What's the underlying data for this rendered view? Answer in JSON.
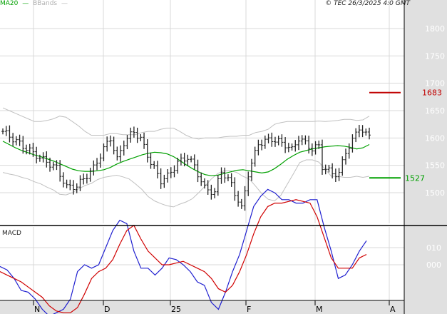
{
  "legend": {
    "ma_label": "MA20",
    "bb_label": "BBands"
  },
  "source_label": "© TEC 26/3/2025 4:0 GMT",
  "macd_label": "MACD",
  "colors": {
    "price": "#222222",
    "ma20": "#00a000",
    "bbands": "#c0c0c0",
    "macd_line": "#2020d0",
    "signal_line": "#d00000",
    "resistance": "#c00000",
    "support": "#00a000",
    "grid": "#d8d8d8",
    "axis_band": "#e0e0e0"
  },
  "chart_data": [
    {
      "type": "ohlc",
      "ylim": [
        1440,
        1830
      ],
      "y_ticks": [
        1500,
        1550,
        1600,
        1650,
        1700,
        1750,
        1800
      ],
      "y_tick_labels": [
        "1500",
        "1550",
        "1600",
        "1650",
        "1700",
        "1750",
        "1800"
      ],
      "x_month_labels": [
        "N",
        "D",
        "25",
        "F",
        "M",
        "A"
      ],
      "num_sessions": 110,
      "levels": [
        {
          "name": "resistance",
          "value": 1683,
          "label": "1683"
        },
        {
          "name": "support",
          "value": 1527,
          "label": "1527"
        }
      ],
      "series": [
        {
          "name": "price_close",
          "key_points": [
            [
              0,
              1612
            ],
            [
              6,
              1585
            ],
            [
              12,
              1560
            ],
            [
              16,
              1545
            ],
            [
              19,
              1510
            ],
            [
              22,
              1512
            ],
            [
              27,
              1545
            ],
            [
              30,
              1580
            ],
            [
              32,
              1600
            ],
            [
              34,
              1560
            ],
            [
              36,
              1592
            ],
            [
              39,
              1612
            ],
            [
              41,
              1598
            ],
            [
              44,
              1555
            ],
            [
              47,
              1522
            ],
            [
              49,
              1530
            ],
            [
              52,
              1555
            ],
            [
              55,
              1565
            ],
            [
              57,
              1548
            ],
            [
              60,
              1508
            ],
            [
              63,
              1500
            ],
            [
              65,
              1540
            ],
            [
              68,
              1515
            ],
            [
              71,
              1470
            ],
            [
              73,
              1535
            ],
            [
              76,
              1590
            ],
            [
              80,
              1598
            ],
            [
              84,
              1588
            ],
            [
              86,
              1578
            ],
            [
              88,
              1600
            ],
            [
              92,
              1580
            ],
            [
              94,
              1585
            ],
            [
              95,
              1548
            ],
            [
              98,
              1535
            ],
            [
              100,
              1535
            ],
            [
              102,
              1575
            ],
            [
              104,
              1595
            ],
            [
              106,
              1620
            ],
            [
              108,
              1605
            ]
          ]
        },
        {
          "name": "MA20",
          "values": [
            1594,
            1588,
            1582,
            1577,
            1573,
            1569,
            1566,
            1562,
            1558,
            1553,
            1548,
            1543,
            1540,
            1539,
            1539,
            1540,
            1542,
            1546,
            1552,
            1557,
            1561,
            1565,
            1569,
            1572,
            1574,
            1573,
            1571,
            1566,
            1559,
            1551,
            1544,
            1538,
            1533,
            1531,
            1532,
            1535,
            1538,
            1541,
            1542,
            1540,
            1538,
            1536,
            1538,
            1544,
            1552,
            1561,
            1568,
            1574,
            1577,
            1580,
            1582,
            1584,
            1585,
            1586,
            1585,
            1583,
            1580,
            1582,
            1588
          ]
        },
        {
          "name": "BB_upper",
          "values": [
            1655,
            1650,
            1645,
            1640,
            1635,
            1630,
            1630,
            1632,
            1635,
            1640,
            1638,
            1630,
            1622,
            1612,
            1605,
            1605,
            1605,
            1608,
            1608,
            1606,
            1606,
            1606,
            1610,
            1612,
            1612,
            1616,
            1618,
            1618,
            1612,
            1605,
            1600,
            1598,
            1600,
            1600,
            1600,
            1602,
            1603,
            1603,
            1605,
            1605,
            1610,
            1612,
            1616,
            1625,
            1628,
            1630,
            1630,
            1630,
            1630,
            1630,
            1631,
            1630,
            1631,
            1632,
            1634,
            1634,
            1632,
            1633,
            1640
          ]
        },
        {
          "name": "BB_lower",
          "values": [
            1537,
            1534,
            1532,
            1528,
            1525,
            1520,
            1516,
            1510,
            1505,
            1497,
            1496,
            1500,
            1507,
            1513,
            1517,
            1524,
            1528,
            1530,
            1532,
            1529,
            1525,
            1516,
            1506,
            1493,
            1485,
            1480,
            1476,
            1474,
            1479,
            1483,
            1489,
            1500,
            1512,
            1525,
            1535,
            1540,
            1540,
            1537,
            1530,
            1525,
            1512,
            1498,
            1488,
            1485,
            1495,
            1515,
            1535,
            1555,
            1560,
            1560,
            1556,
            1543,
            1530,
            1530,
            1528,
            1528,
            1530,
            1528,
            1530
          ]
        }
      ]
    },
    {
      "type": "line",
      "title": "MACD",
      "ylim": [
        -30,
        40
      ],
      "y_ticks": [
        0,
        10
      ],
      "y_tick_labels": [
        "000",
        "010"
      ],
      "series": [
        {
          "name": "MACD",
          "values": [
            -1,
            -3,
            -8,
            -15,
            -16,
            -20,
            -26,
            -30,
            -28,
            -26,
            -20,
            -4,
            0,
            -2,
            0,
            10,
            20,
            26,
            24,
            8,
            -2,
            -2,
            -6,
            -2,
            4,
            3,
            0,
            -4,
            -10,
            -12,
            -22,
            -26,
            -16,
            -4,
            6,
            20,
            34,
            40,
            44,
            42,
            38,
            38,
            36,
            36,
            38,
            38,
            22,
            8,
            -8,
            -6,
            0,
            8,
            14
          ]
        },
        {
          "name": "Signal",
          "values": [
            -4,
            -6,
            -8,
            -10,
            -13,
            -16,
            -19,
            -24,
            -27,
            -28,
            -28,
            -25,
            -17,
            -8,
            -4,
            -2,
            3,
            12,
            20,
            23,
            15,
            8,
            4,
            0,
            0,
            1,
            2,
            0,
            -2,
            -4,
            -8,
            -14,
            -16,
            -12,
            -4,
            6,
            18,
            28,
            34,
            36,
            36,
            37,
            38,
            37,
            36,
            28,
            16,
            4,
            -2,
            -2,
            -2,
            4,
            6
          ]
        }
      ]
    }
  ]
}
